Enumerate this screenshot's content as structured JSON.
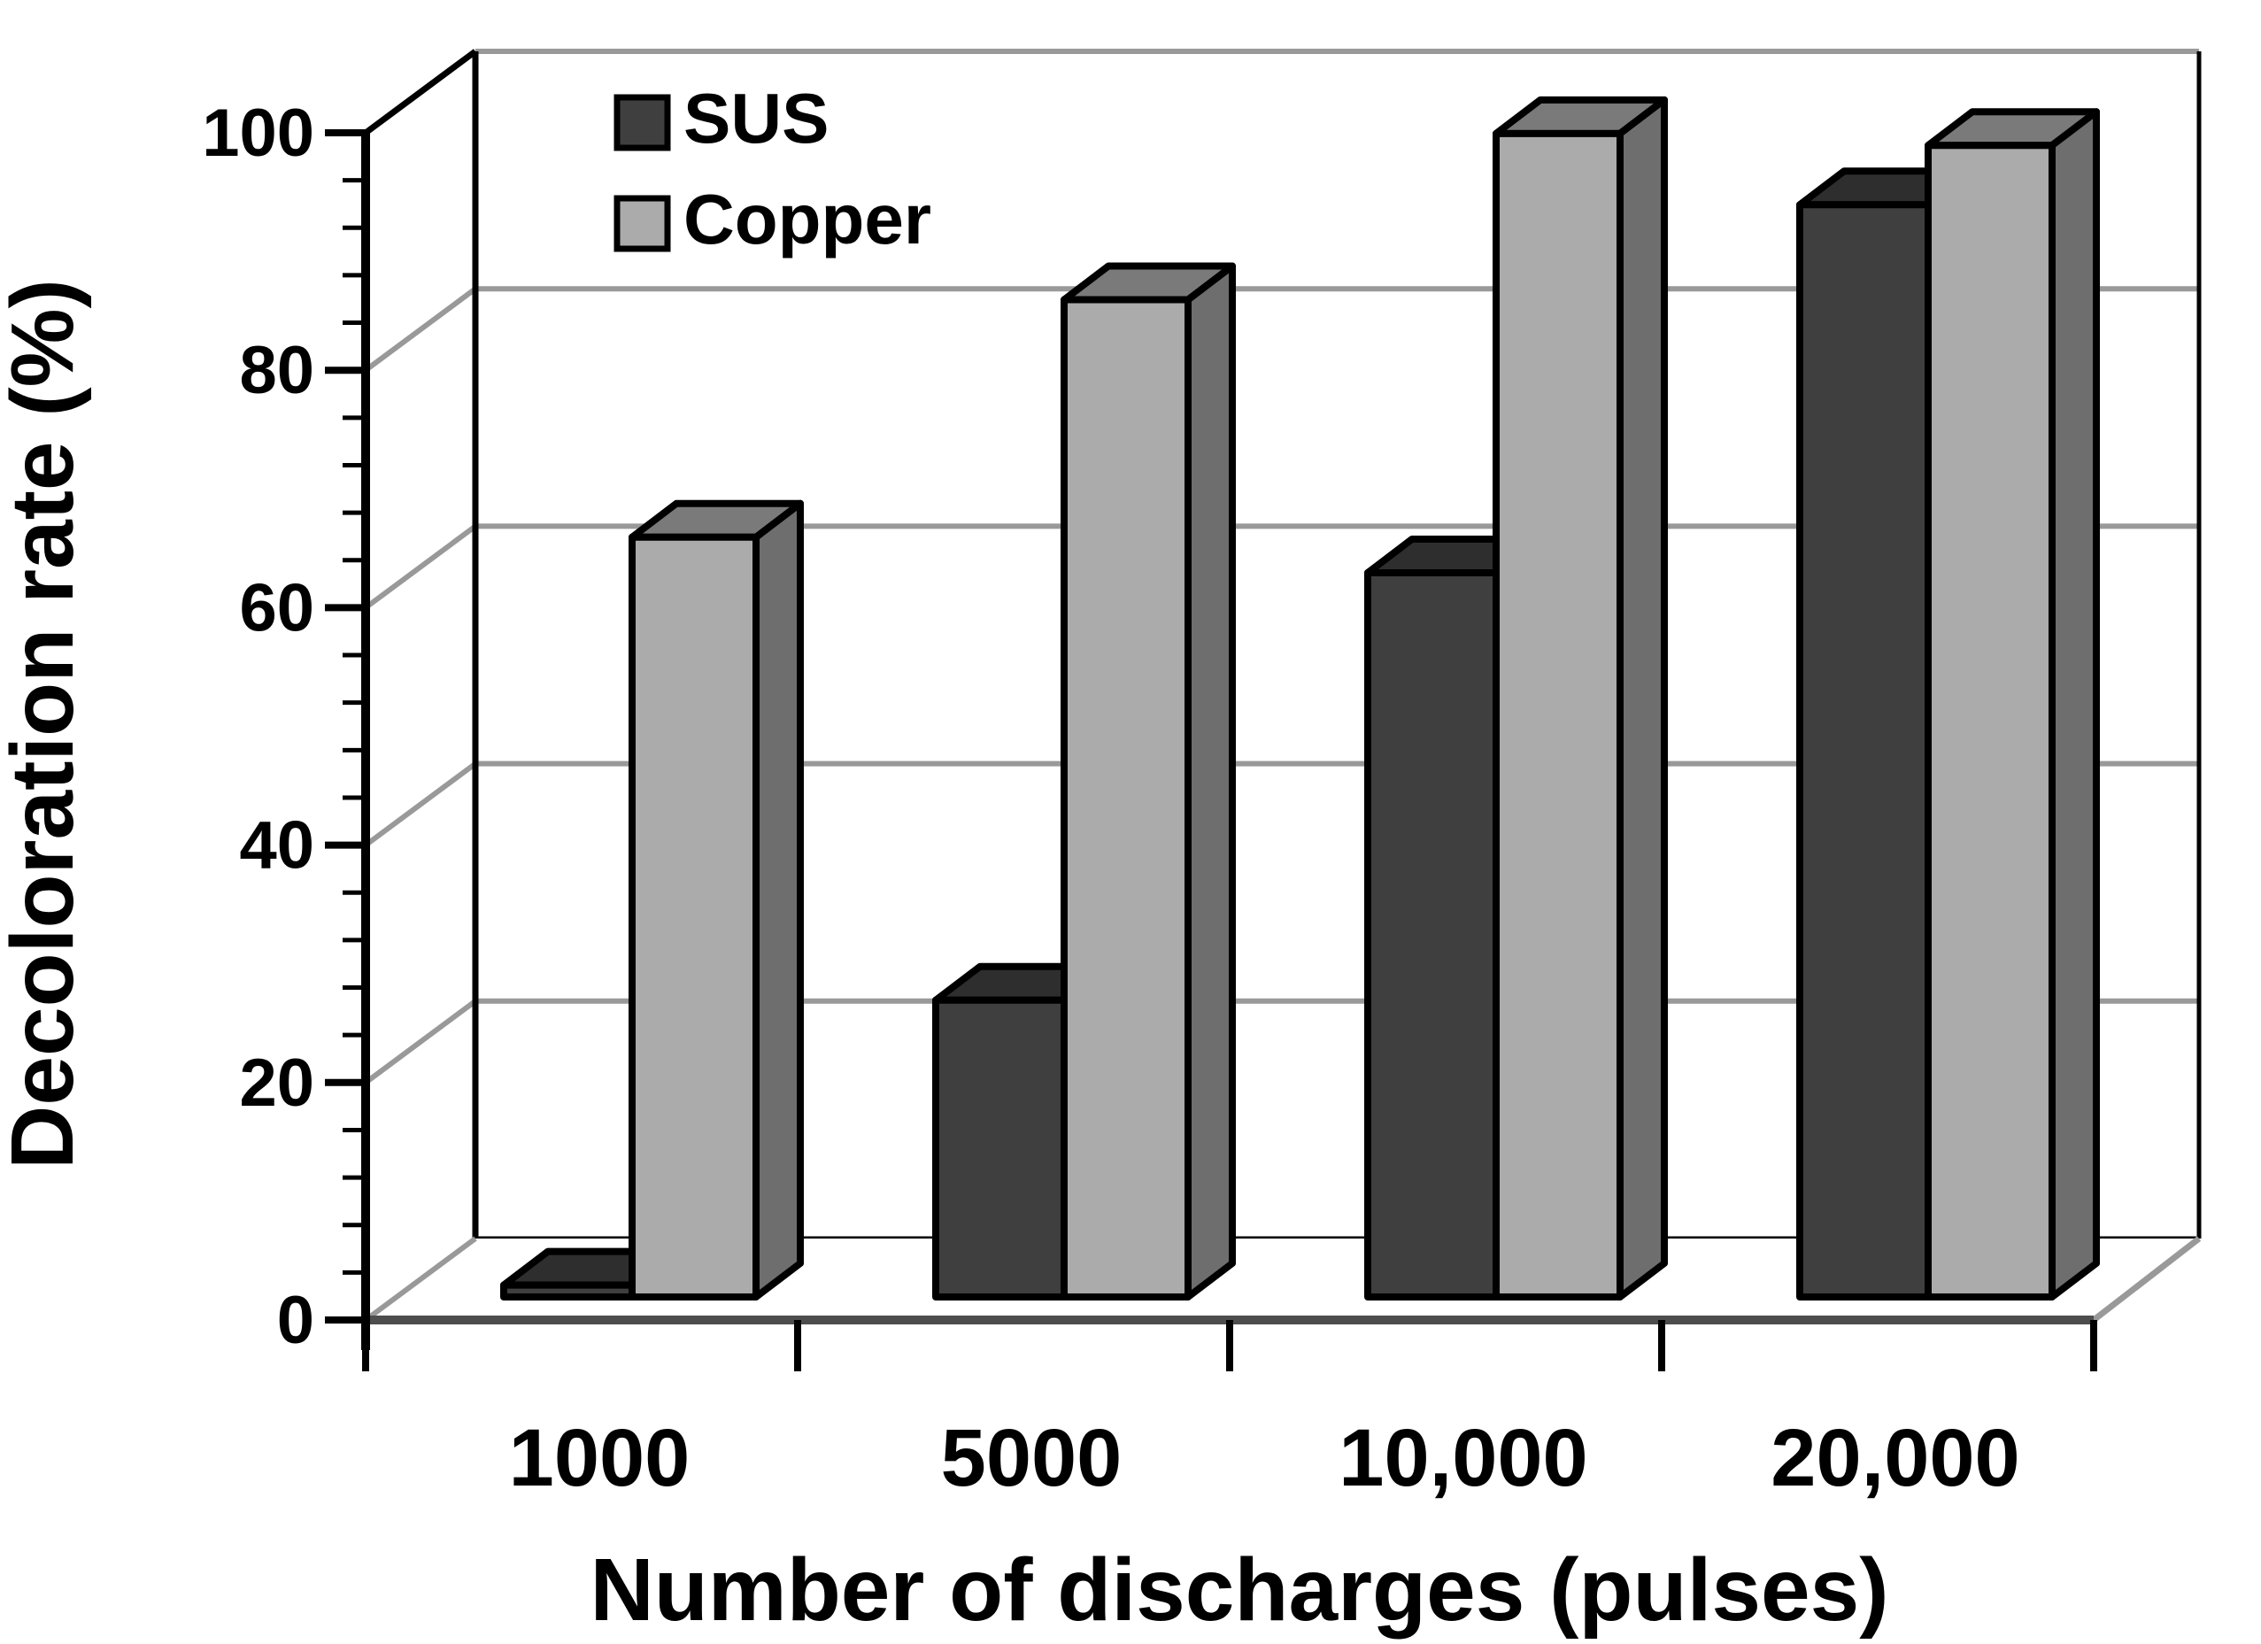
{
  "figure": {
    "background": "#ffffff"
  },
  "chart_data": {
    "type": "bar",
    "style": "3d-column",
    "title": "",
    "xlabel": "Number of discharges (pulses)",
    "ylabel": "Decoloration rate (%)",
    "categories": [
      "1000",
      "5000",
      "10,000",
      "20,000"
    ],
    "series": [
      {
        "name": "SUS",
        "values": [
          1,
          25,
          61,
          92
        ],
        "colors": {
          "front": "#3f3f3f",
          "side": "#262626",
          "top": "#2e2e2e"
        }
      },
      {
        "name": "Copper",
        "values": [
          64,
          84,
          98,
          97
        ],
        "colors": {
          "front": "#ababab",
          "side": "#6e6e6e",
          "top": "#7a7a7a"
        }
      }
    ],
    "ylim": [
      0,
      100
    ],
    "ytick_labels": [
      "0",
      "20",
      "40",
      "60",
      "80",
      "100"
    ],
    "ytick_major": 20,
    "ytick_minor": 4,
    "grid": true,
    "legend_position": "top-inside",
    "colors": {
      "gridline": "#999999",
      "axis": "#000000",
      "floor_front_line": "#4d4d4d",
      "text": "#000000",
      "wall_fill": "#ffffff",
      "floor_fill": "#ffffff"
    }
  }
}
